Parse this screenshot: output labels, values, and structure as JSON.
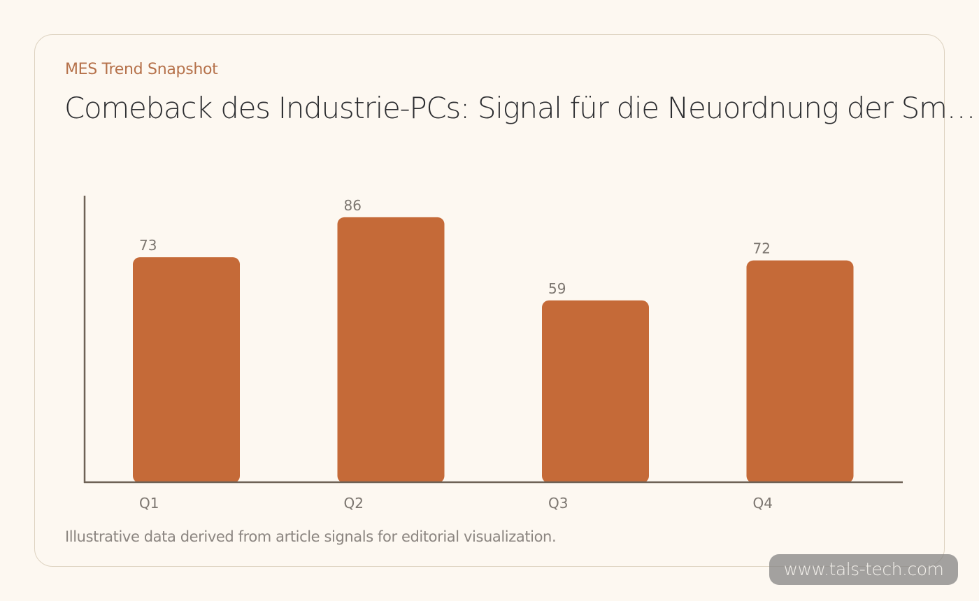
{
  "header": {
    "eyebrow": "MES Trend Snapshot",
    "title": "Comeback des Industrie-PCs: Signal für die Neuordnung der Smart Factory"
  },
  "footnote": "Illustrative data derived from article signals for editorial visualization.",
  "watermark": "www.tals-tech.com",
  "colors": {
    "bar": "#c56a38",
    "axis": "#6e6256",
    "label": "#7c7670"
  },
  "chart_data": {
    "type": "bar",
    "categories": [
      "Q1",
      "Q2",
      "Q3",
      "Q4"
    ],
    "values": [
      73,
      86,
      59,
      72
    ],
    "title": "",
    "xlabel": "",
    "ylabel": "",
    "ylim": [
      0,
      93
    ],
    "grid": false,
    "data_labels": true
  }
}
